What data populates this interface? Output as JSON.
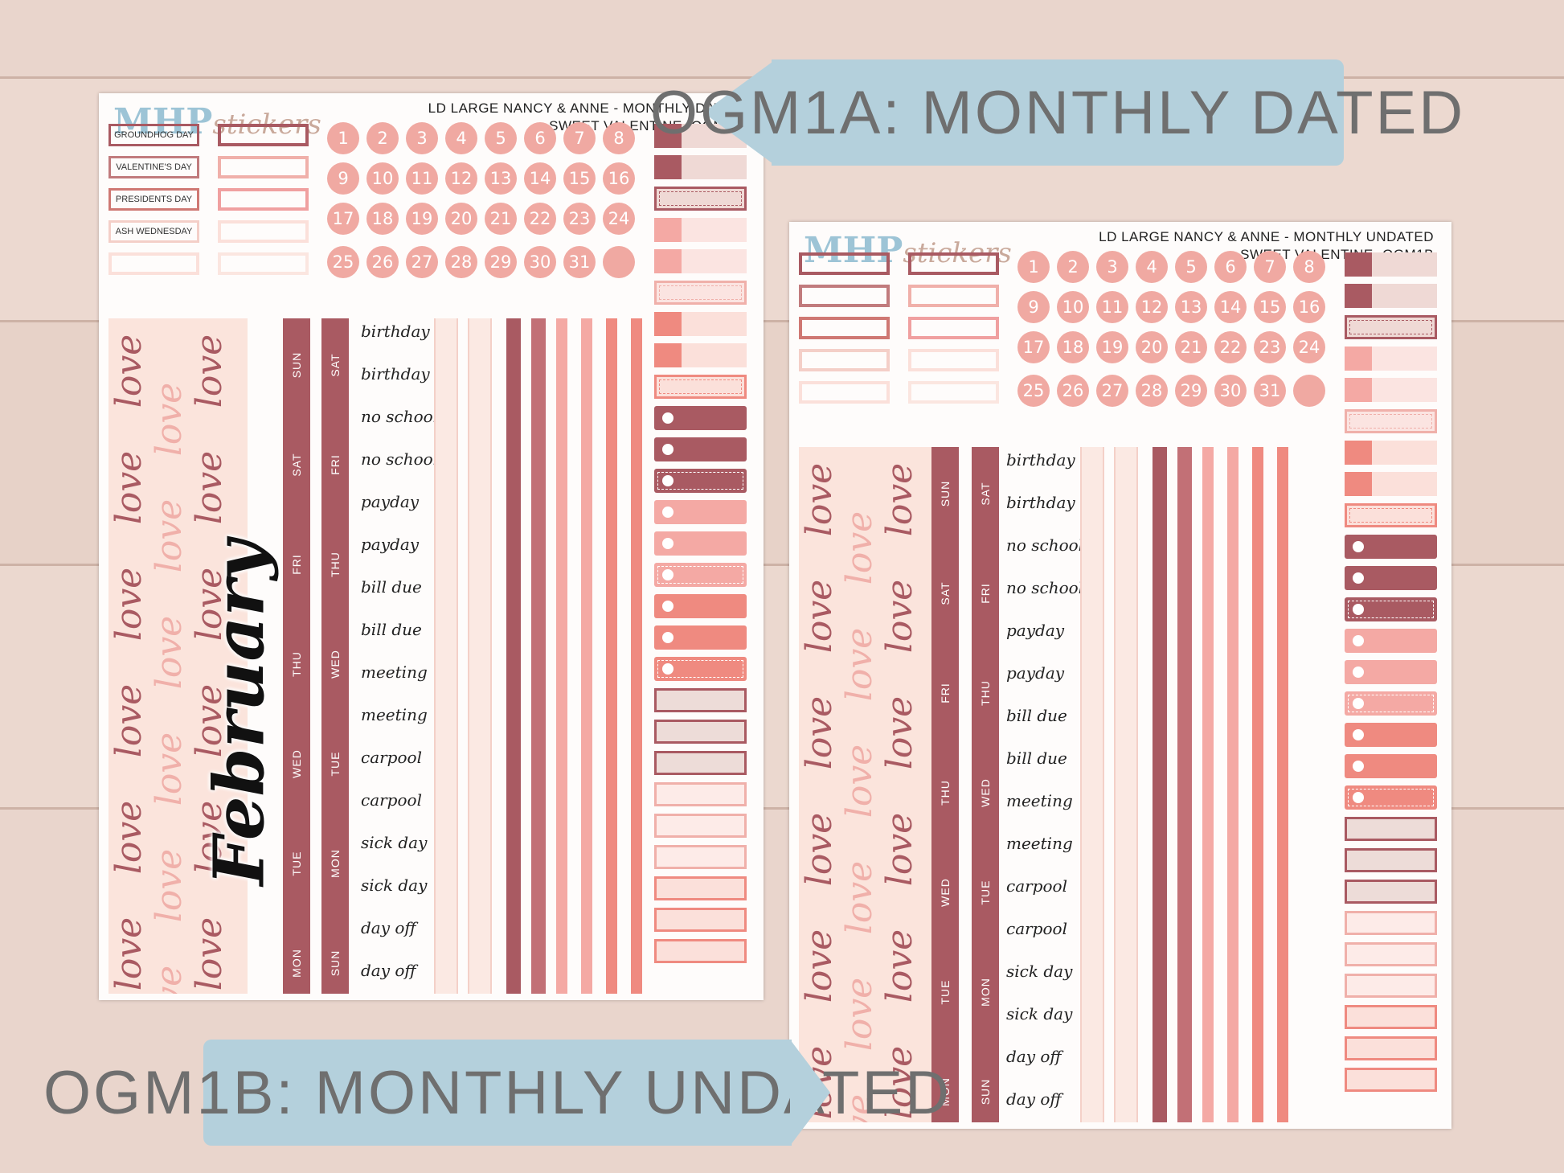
{
  "colors": {
    "wood": "#ead7cf",
    "mauve": "#a95a62",
    "pink": "#f0a9a2",
    "salmon": "#ef8a80",
    "blush": "#fbe4dc",
    "tag": "#b4d0dc"
  },
  "sheet_a": {
    "logo_main": "MHP",
    "logo_sub": "stickers",
    "header_line1": "LD LARGE NANCY & ANNE - MONTHLY DATED",
    "header_line2": "SWEET VALENTINE -OGM1A",
    "events": [
      "GROUNDHOG DAY",
      "VALENTINE'S DAY",
      "PRESIDENTS DAY",
      "ASH WEDNESDAY"
    ],
    "dates": [
      "1",
      "2",
      "3",
      "4",
      "5",
      "6",
      "7",
      "8",
      "9",
      "10",
      "11",
      "12",
      "13",
      "14",
      "15",
      "16",
      "17",
      "18",
      "19",
      "20",
      "21",
      "22",
      "23",
      "24",
      "25",
      "26",
      "27",
      "28",
      "29",
      "30",
      "31"
    ],
    "month_script": "February",
    "love_word": "love",
    "days_col1": [
      "SUN",
      "SAT",
      "FRI",
      "THU",
      "WED",
      "TUE",
      "MON"
    ],
    "days_col2": [
      "SAT",
      "FRI",
      "THU",
      "WED",
      "TUE",
      "MON",
      "SUN"
    ],
    "words": [
      "birthday",
      "birthday",
      "no school",
      "no school",
      "payday",
      "payday",
      "bill due",
      "bill due",
      "meeting",
      "meeting",
      "carpool",
      "carpool",
      "sick day",
      "sick day",
      "day off",
      "day off"
    ]
  },
  "sheet_b": {
    "logo_main": "MHP",
    "logo_sub": "stickers",
    "header_line1": "LD LARGE NANCY & ANNE - MONTHLY UNDATED",
    "header_line2": "SWEET VALENTINE -OGM1B",
    "dates": [
      "1",
      "2",
      "3",
      "4",
      "5",
      "6",
      "7",
      "8",
      "9",
      "10",
      "11",
      "12",
      "13",
      "14",
      "15",
      "16",
      "17",
      "18",
      "19",
      "20",
      "21",
      "22",
      "23",
      "24",
      "25",
      "26",
      "27",
      "28",
      "29",
      "30",
      "31"
    ],
    "love_word": "love",
    "days_col1": [
      "SUN",
      "SAT",
      "FRI",
      "THU",
      "WED",
      "TUE",
      "MON"
    ],
    "days_col2": [
      "SAT",
      "FRI",
      "THU",
      "WED",
      "TUE",
      "MON",
      "SUN"
    ],
    "words": [
      "birthday",
      "birthday",
      "no school",
      "no school",
      "payday",
      "payday",
      "bill due",
      "bill due",
      "meeting",
      "meeting",
      "carpool",
      "carpool",
      "sick day",
      "sick day",
      "day off",
      "day off"
    ]
  },
  "tag_a": "OGM1A: MONTHLY DATED",
  "tag_b": "OGM1B: MONTHLY UNDATED"
}
